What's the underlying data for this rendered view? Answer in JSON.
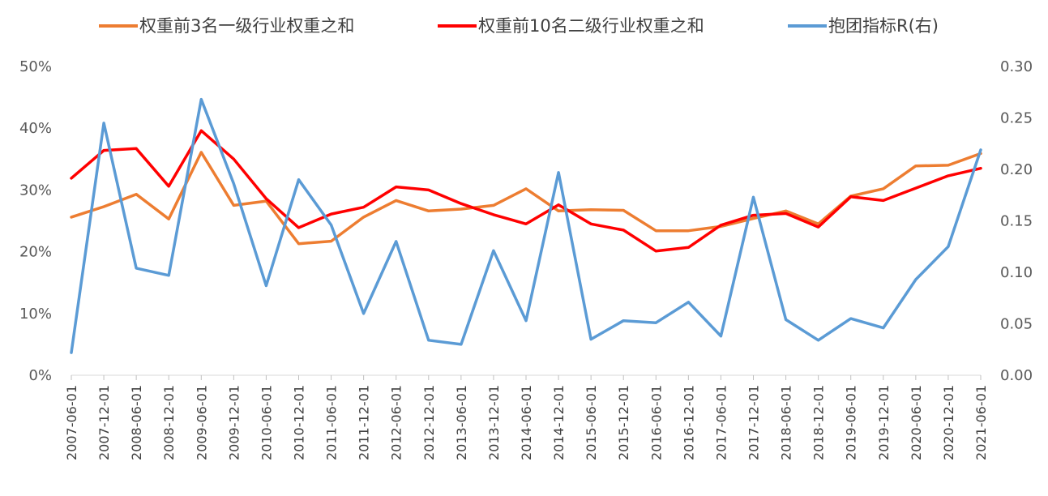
{
  "chart_data": {
    "type": "line",
    "title": "",
    "xlabel": "",
    "ylabel": "",
    "legend_position": "top",
    "grid": false,
    "x": [
      "2007-06-01",
      "2007-12-01",
      "2008-06-01",
      "2008-12-01",
      "2009-06-01",
      "2009-12-01",
      "2010-06-01",
      "2010-12-01",
      "2011-06-01",
      "2011-12-01",
      "2012-06-01",
      "2012-12-01",
      "2013-06-01",
      "2013-12-01",
      "2014-06-01",
      "2014-12-01",
      "2015-06-01",
      "2015-12-01",
      "2016-06-01",
      "2016-12-01",
      "2017-06-01",
      "2017-12-01",
      "2018-06-01",
      "2018-12-01",
      "2019-06-01",
      "2019-12-01",
      "2020-06-01",
      "2020-12-01",
      "2021-06-01"
    ],
    "left_axis": {
      "min": 0,
      "max": 50,
      "ticks": [
        "0%",
        "10%",
        "20%",
        "30%",
        "40%",
        "50%"
      ]
    },
    "right_axis": {
      "min": 0,
      "max": 0.3,
      "ticks": [
        "0.00",
        "0.05",
        "0.10",
        "0.15",
        "0.20",
        "0.25",
        "0.30"
      ]
    },
    "series": [
      {
        "name": "权重前3名一级行业权重之和",
        "axis": "left",
        "color": "#ED7D31",
        "values": [
          25.6,
          27.3,
          29.3,
          25.3,
          36.1,
          27.5,
          28.2,
          21.3,
          21.7,
          25.6,
          28.3,
          26.6,
          26.9,
          27.5,
          30.2,
          26.6,
          26.8,
          26.7,
          23.4,
          23.4,
          24.1,
          25.4,
          26.6,
          24.5,
          29.0,
          30.2,
          33.9,
          34.0,
          35.9
        ]
      },
      {
        "name": "权重前10名二级行业权重之和",
        "axis": "left",
        "color": "#FF0000",
        "values": [
          31.9,
          36.4,
          36.7,
          30.6,
          39.6,
          35.0,
          28.6,
          23.9,
          26.1,
          27.2,
          30.5,
          30.0,
          27.8,
          26.0,
          24.5,
          27.6,
          24.5,
          23.5,
          20.1,
          20.7,
          24.3,
          25.9,
          26.2,
          24.0,
          28.9,
          28.3,
          30.3,
          32.3,
          33.5
        ]
      },
      {
        "name": "抱团指标R(右)",
        "axis": "right",
        "color": "#5B9BD5",
        "values": [
          0.022,
          0.245,
          0.104,
          0.097,
          0.268,
          0.186,
          0.087,
          0.19,
          0.146,
          0.06,
          0.13,
          0.034,
          0.03,
          0.121,
          0.053,
          0.197,
          0.035,
          0.053,
          0.051,
          0.071,
          0.038,
          0.173,
          0.054,
          0.034,
          0.055,
          0.046,
          0.093,
          0.125,
          0.219
        ]
      }
    ]
  }
}
